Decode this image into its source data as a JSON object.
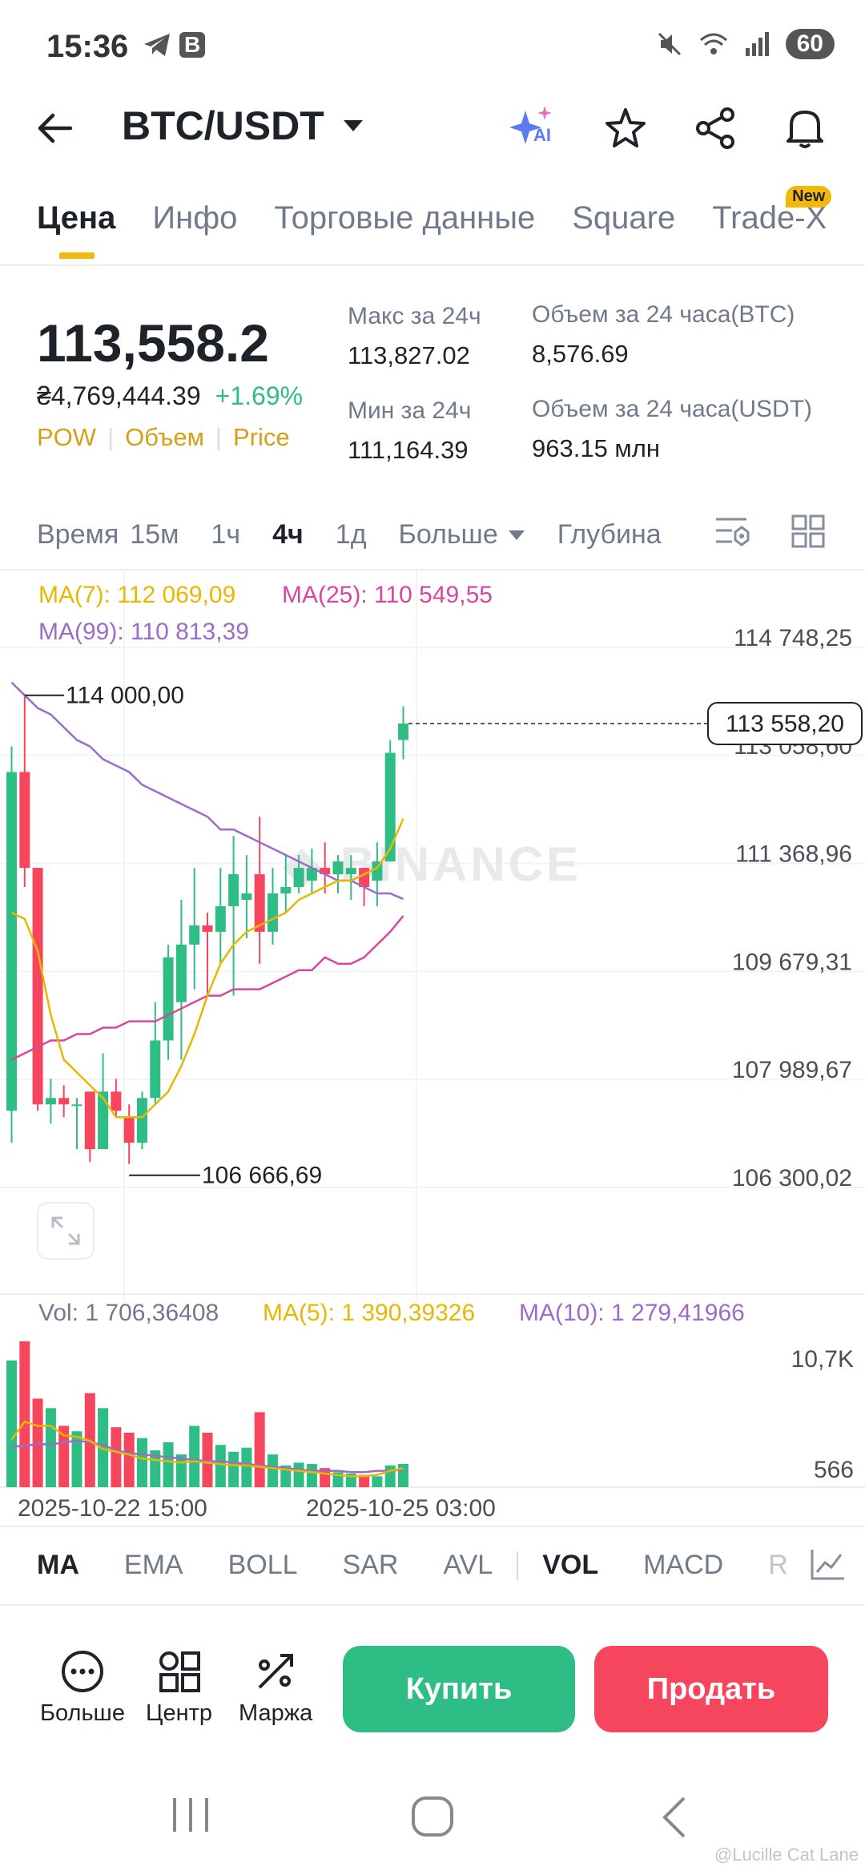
{
  "status": {
    "time": "15:36",
    "badge": "B",
    "battery": "60"
  },
  "header": {
    "pair": "BTC/USDT",
    "ai_label": "AI"
  },
  "tabs": [
    {
      "label": "Цена"
    },
    {
      "label": "Инфо"
    },
    {
      "label": "Торговые данные"
    },
    {
      "label": "Square"
    },
    {
      "label": "Trade-X"
    }
  ],
  "new_badge": "New",
  "price": {
    "last": "113,558.2",
    "fiat": "₴4,769,444.39",
    "change": "+1.69%",
    "tags": [
      "POW",
      "Объем",
      "Price"
    ]
  },
  "stats": {
    "high_label": "Макс за 24ч",
    "high": "113,827.02",
    "low_label": "Мин за 24ч",
    "low": "111,164.39",
    "vol_btc_label": "Объем за 24 часа(BTC)",
    "vol_btc": "8,576.69",
    "vol_usdt_label": "Объем за 24 часа(USDT)",
    "vol_usdt": "963.15 млн"
  },
  "timeframes": {
    "label": "Время",
    "items": [
      "15м",
      "1ч",
      "4ч",
      "1д"
    ],
    "selected": "4ч",
    "more": "Больше",
    "depth": "Глубина"
  },
  "ma_legend": {
    "ma7": "MA(7): 112 069,09",
    "ma25": "MA(25): 110 549,55",
    "ma99": "MA(99): 110 813,39"
  },
  "chart_labels": {
    "high_marker": "114 000,00",
    "low_marker": "106 666,69",
    "current_price": "113 558,20",
    "watermark": "BINANCE"
  },
  "y_axis": [
    "114 748,25",
    "113 058,60",
    "111 368,96",
    "109 679,31",
    "107 989,67",
    "106 300,02"
  ],
  "volume_legend": {
    "vol": "Vol: 1 706,36408",
    "ma5": "MA(5): 1 390,39326",
    "ma10": "MA(10): 1 279,41966"
  },
  "volume_axis": [
    "10,7K",
    "566"
  ],
  "x_axis": [
    "2025-10-22 15:00",
    "2025-10-25 03:00"
  ],
  "indicators": {
    "items": [
      "MA",
      "EMA",
      "BOLL",
      "SAR",
      "AVL",
      "VOL",
      "MACD",
      "R"
    ],
    "selected": [
      "MA",
      "VOL"
    ]
  },
  "actions": [
    {
      "label": "Больше"
    },
    {
      "label": "Центр"
    },
    {
      "label": "Маржа"
    }
  ],
  "buy_label": "Купить",
  "sell_label": "Продать",
  "watermark_credit": "@Lucille Cat Lane",
  "colors": {
    "up": "#2ebd85",
    "down": "#f6465d",
    "ma7": "#e6b800",
    "ma25": "#d946a0",
    "ma99": "#9b6cc8",
    "accent": "#f0b90b"
  },
  "chart_data": {
    "type": "candlestick",
    "interval": "4ч",
    "ylim": [
      106300.02,
      114748.25
    ],
    "candles": [
      {
        "o": 107500,
        "h": 113200,
        "l": 107000,
        "c": 112800
      },
      {
        "o": 112800,
        "h": 114000,
        "l": 111000,
        "c": 111300
      },
      {
        "o": 111300,
        "h": 111300,
        "l": 107500,
        "c": 107600
      },
      {
        "o": 107600,
        "h": 108000,
        "l": 107300,
        "c": 107700
      },
      {
        "o": 107700,
        "h": 107900,
        "l": 107400,
        "c": 107600
      },
      {
        "o": 107600,
        "h": 107700,
        "l": 106900,
        "c": 107600
      },
      {
        "o": 107800,
        "h": 107800,
        "l": 106700,
        "c": 106900
      },
      {
        "o": 106900,
        "h": 108400,
        "l": 106900,
        "c": 107800
      },
      {
        "o": 107800,
        "h": 108000,
        "l": 107400,
        "c": 107500
      },
      {
        "o": 107400,
        "h": 107600,
        "l": 106666.69,
        "c": 107000
      },
      {
        "o": 107000,
        "h": 107800,
        "l": 106900,
        "c": 107700
      },
      {
        "o": 107700,
        "h": 109200,
        "l": 107600,
        "c": 108600
      },
      {
        "o": 108600,
        "h": 110100,
        "l": 108300,
        "c": 109900
      },
      {
        "o": 109200,
        "h": 110800,
        "l": 108300,
        "c": 110100
      },
      {
        "o": 110100,
        "h": 111300,
        "l": 109400,
        "c": 110400
      },
      {
        "o": 110400,
        "h": 110600,
        "l": 109300,
        "c": 110300
      },
      {
        "o": 110300,
        "h": 111300,
        "l": 109800,
        "c": 110700
      },
      {
        "o": 110700,
        "h": 111800,
        "l": 109300,
        "c": 111200
      },
      {
        "o": 110800,
        "h": 111500,
        "l": 110200,
        "c": 110900
      },
      {
        "o": 111200,
        "h": 112100,
        "l": 109800,
        "c": 110300
      },
      {
        "o": 110300,
        "h": 111300,
        "l": 110100,
        "c": 110900
      },
      {
        "o": 110900,
        "h": 111500,
        "l": 110600,
        "c": 111000
      },
      {
        "o": 111000,
        "h": 111500,
        "l": 110900,
        "c": 111300
      },
      {
        "o": 111100,
        "h": 111600,
        "l": 110900,
        "c": 111300
      },
      {
        "o": 111300,
        "h": 111700,
        "l": 110900,
        "c": 111200
      },
      {
        "o": 111200,
        "h": 111500,
        "l": 110900,
        "c": 111400
      },
      {
        "o": 111200,
        "h": 111500,
        "l": 110800,
        "c": 111300
      },
      {
        "o": 111300,
        "h": 111300,
        "l": 110700,
        "c": 111000
      },
      {
        "o": 111100,
        "h": 111700,
        "l": 110700,
        "c": 111400
      },
      {
        "o": 111400,
        "h": 113300,
        "l": 111400,
        "c": 113100
      },
      {
        "o": 113300,
        "h": 113827.02,
        "l": 113000,
        "c": 113558.2
      }
    ],
    "ma7": [
      110600,
      110500,
      110000,
      109000,
      108300,
      108100,
      107900,
      107700,
      107400,
      107400,
      107400,
      107600,
      107800,
      108200,
      108700,
      109300,
      109800,
      110100,
      110300,
      110400,
      110500,
      110600,
      110800,
      110900,
      111000,
      111100,
      111100,
      111200,
      111300,
      111600,
      112069.09
    ],
    "ma25": [
      108300,
      108400,
      108500,
      108600,
      108600,
      108700,
      108700,
      108800,
      108800,
      108900,
      108900,
      108900,
      109000,
      109100,
      109200,
      109300,
      109300,
      109400,
      109400,
      109400,
      109500,
      109600,
      109700,
      109700,
      109900,
      109800,
      109800,
      109900,
      110100,
      110300,
      110549.55
    ],
    "ma99": [
      114200,
      114000,
      113800,
      113700,
      113500,
      113300,
      113200,
      113000,
      112900,
      112800,
      112600,
      112500,
      112400,
      112300,
      112200,
      112100,
      111900,
      111900,
      111800,
      111700,
      111600,
      111500,
      111400,
      111300,
      111200,
      111100,
      111100,
      111000,
      110900,
      110900,
      110813.39
    ],
    "volume": {
      "ylim": [
        0,
        10700
      ],
      "values": [
        9300,
        10700,
        6500,
        5800,
        4500,
        4100,
        6900,
        5800,
        4400,
        4000,
        3600,
        2700,
        3300,
        2400,
        4500,
        4000,
        3100,
        2600,
        2900,
        5500,
        2400,
        1600,
        1800,
        1700,
        1400,
        1100,
        1000,
        900,
        800,
        1600,
        1706.36408
      ],
      "ma5": [
        3500,
        4800,
        4500,
        4500,
        3800,
        3700,
        3400,
        2800,
        2600,
        2400,
        2100,
        2000,
        1900,
        1800,
        1900,
        1800,
        1700,
        1600,
        1600,
        1500,
        1400,
        1300,
        1200,
        1100,
        1000,
        900,
        800,
        800,
        900,
        1200,
        1390.39326
      ],
      "ma10": [
        3000,
        3000,
        3200,
        3100,
        3300,
        3400,
        3300,
        3100,
        2700,
        2500,
        2400,
        2300,
        2200,
        2100,
        2000,
        1900,
        1900,
        1800,
        1700,
        1600,
        1500,
        1400,
        1300,
        1200,
        1200,
        1200,
        1100,
        1100,
        1200,
        1200,
        1279.41966
      ]
    },
    "x_ticks": [
      "2025-10-22 15:00",
      "2025-10-25 03:00"
    ],
    "y_ticks": [
      114748.25,
      113058.6,
      111368.96,
      109679.31,
      107989.67,
      106300.02
    ]
  }
}
